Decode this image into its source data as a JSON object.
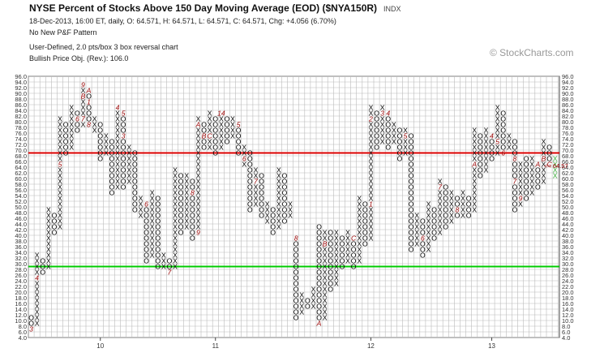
{
  "header": {
    "title": "NYSE Percent of Stocks Above 150 Day Moving Average (EOD) ($NYA150R)",
    "exchange": "INDX",
    "quote": "18-Dec-2013, 16:00 ET, daily, O: 64.571, H: 64.571, L: 64.571, C: 64.571, Chg: +4.056 (6.70%)",
    "pattern": "No New P&F Pattern",
    "scaling": "User-Defined, 2.0 pts/box 3 box reversal chart",
    "objective": "Bullish Price Obj. (Rev.): 106.0"
  },
  "watermark": "© StockCharts.com",
  "chart_data": {
    "type": "point-and-figure",
    "box_size": 2,
    "reversal": 3,
    "ylim": [
      4,
      96
    ],
    "y_ticks": [
      "96.0",
      "94.0",
      "92.0",
      "90.0",
      "88.0",
      "86.0",
      "84.0",
      "82.0",
      "80.0",
      "78.0",
      "76.0",
      "74.0",
      "72.0",
      "70.0",
      "68.0",
      "66.0",
      "64.0",
      "62.0",
      "60.0",
      "58.0",
      "56.0",
      "54.0",
      "52.0",
      "50.0",
      "48.0",
      "46.0",
      "44.0",
      "42.0",
      "40.0",
      "38.0",
      "36.0",
      "34.0",
      "32.0",
      "30.0",
      "28.0",
      "26.0",
      "24.0",
      "22.0",
      "20.0",
      "18.0",
      "16.0",
      "14.0",
      "12.0",
      "10.0",
      "8.0",
      "6.0",
      "4.0"
    ],
    "x_ticks": [
      {
        "label": "10",
        "col": 12
      },
      {
        "label": "11",
        "col": 32
      },
      {
        "label": "12",
        "col": 59
      },
      {
        "label": "13",
        "col": 80
      }
    ],
    "resistance_line": 69,
    "support_line": 29,
    "last_value_label": "64.57",
    "columns": [
      {
        "t": "O",
        "high": 10,
        "low": 6
      },
      {
        "t": "X",
        "high": 32,
        "low": 8
      },
      {
        "t": "O",
        "high": 30,
        "low": 26
      },
      {
        "t": "X",
        "high": 48,
        "low": 28
      },
      {
        "t": "O",
        "high": 46,
        "low": 40
      },
      {
        "t": "X",
        "high": 80,
        "low": 42
      },
      {
        "t": "O",
        "high": 78,
        "low": 68
      },
      {
        "t": "X",
        "high": 84,
        "low": 70
      },
      {
        "t": "O",
        "high": 82,
        "low": 76
      },
      {
        "t": "X",
        "high": 92,
        "low": 78
      },
      {
        "t": "O",
        "high": 90,
        "low": 78
      },
      {
        "t": "X",
        "high": 80,
        "low": 76
      },
      {
        "t": "O",
        "high": 78,
        "low": 66
      },
      {
        "t": "X",
        "high": 74,
        "low": 68
      },
      {
        "t": "O",
        "high": 72,
        "low": 54
      },
      {
        "t": "X",
        "high": 84,
        "low": 56
      },
      {
        "t": "O",
        "high": 82,
        "low": 56
      },
      {
        "t": "X",
        "high": 70,
        "low": 58
      },
      {
        "t": "O",
        "high": 68,
        "low": 48
      },
      {
        "t": "X",
        "high": 52,
        "low": 46
      },
      {
        "t": "O",
        "high": 50,
        "low": 30
      },
      {
        "t": "X",
        "high": 54,
        "low": 32
      },
      {
        "t": "O",
        "high": 52,
        "low": 28
      },
      {
        "t": "X",
        "high": 32,
        "low": 28
      },
      {
        "t": "O",
        "high": 30,
        "low": 26
      },
      {
        "t": "X",
        "high": 62,
        "low": 28
      },
      {
        "t": "O",
        "high": 60,
        "low": 40
      },
      {
        "t": "X",
        "high": 60,
        "low": 42
      },
      {
        "t": "O",
        "high": 58,
        "low": 38
      },
      {
        "t": "X",
        "high": 80,
        "low": 40
      },
      {
        "t": "O",
        "high": 78,
        "low": 70
      },
      {
        "t": "X",
        "high": 82,
        "low": 70
      },
      {
        "t": "O",
        "high": 80,
        "low": 68
      },
      {
        "t": "X",
        "high": 82,
        "low": 70
      },
      {
        "t": "O",
        "high": 80,
        "low": 72
      },
      {
        "t": "X",
        "high": 80,
        "low": 74
      },
      {
        "t": "O",
        "high": 78,
        "low": 68
      },
      {
        "t": "X",
        "high": 70,
        "low": 64
      },
      {
        "t": "O",
        "high": 68,
        "low": 48
      },
      {
        "t": "X",
        "high": 62,
        "low": 50
      },
      {
        "t": "O",
        "high": 60,
        "low": 46
      },
      {
        "t": "X",
        "high": 50,
        "low": 44
      },
      {
        "t": "O",
        "high": 48,
        "low": 40
      },
      {
        "t": "X",
        "high": 62,
        "low": 42
      },
      {
        "t": "O",
        "high": 60,
        "low": 44
      },
      {
        "t": "X",
        "high": 50,
        "low": 46
      },
      {
        "t": "O",
        "high": 38,
        "low": 10
      },
      {
        "t": "X",
        "high": 18,
        "low": 12
      },
      {
        "t": "O",
        "high": 16,
        "low": 14
      },
      {
        "t": "X",
        "high": 20,
        "low": 14
      },
      {
        "t": "O",
        "high": 42,
        "low": 8
      },
      {
        "t": "X",
        "high": 40,
        "low": 10
      },
      {
        "t": "O",
        "high": 40,
        "low": 20
      },
      {
        "t": "X",
        "high": 40,
        "low": 22
      },
      {
        "t": "O",
        "high": 38,
        "low": 28
      },
      {
        "t": "X",
        "high": 40,
        "low": 30
      },
      {
        "t": "O",
        "high": 38,
        "low": 28
      },
      {
        "t": "X",
        "high": 52,
        "low": 30
      },
      {
        "t": "O",
        "high": 50,
        "low": 36
      },
      {
        "t": "X",
        "high": 84,
        "low": 38
      },
      {
        "t": "O",
        "high": 82,
        "low": 70
      },
      {
        "t": "X",
        "high": 84,
        "low": 72
      },
      {
        "t": "O",
        "high": 82,
        "low": 70
      },
      {
        "t": "X",
        "high": 78,
        "low": 72
      },
      {
        "t": "O",
        "high": 76,
        "low": 66
      },
      {
        "t": "X",
        "high": 76,
        "low": 68
      },
      {
        "t": "O",
        "high": 74,
        "low": 34
      },
      {
        "t": "X",
        "high": 46,
        "low": 36
      },
      {
        "t": "O",
        "high": 44,
        "low": 32
      },
      {
        "t": "X",
        "high": 50,
        "low": 34
      },
      {
        "t": "O",
        "high": 48,
        "low": 38
      },
      {
        "t": "X",
        "high": 58,
        "low": 40
      },
      {
        "t": "O",
        "high": 56,
        "low": 42
      },
      {
        "t": "X",
        "high": 54,
        "low": 44
      },
      {
        "t": "O",
        "high": 52,
        "low": 46
      },
      {
        "t": "X",
        "high": 54,
        "low": 46
      },
      {
        "t": "O",
        "high": 52,
        "low": 46
      },
      {
        "t": "X",
        "high": 76,
        "low": 48
      },
      {
        "t": "O",
        "high": 74,
        "low": 60
      },
      {
        "t": "X",
        "high": 76,
        "low": 62
      },
      {
        "t": "O",
        "high": 74,
        "low": 66
      },
      {
        "t": "X",
        "high": 84,
        "low": 68
      },
      {
        "t": "O",
        "high": 82,
        "low": 68
      },
      {
        "t": "X",
        "high": 74,
        "low": 70
      },
      {
        "t": "O",
        "high": 72,
        "low": 48
      },
      {
        "t": "X",
        "high": 64,
        "low": 50
      },
      {
        "t": "O",
        "high": 66,
        "low": 52
      },
      {
        "t": "X",
        "high": 66,
        "low": 54
      },
      {
        "t": "O",
        "high": 64,
        "low": 56
      },
      {
        "t": "X",
        "high": 72,
        "low": 58
      },
      {
        "t": "O",
        "high": 70,
        "low": 64
      },
      {
        "t": "X",
        "high": 66,
        "low": 60
      }
    ],
    "month_markers": [
      {
        "col": 0,
        "value": 6,
        "label": "3"
      },
      {
        "col": 1,
        "value": 24,
        "label": "4"
      },
      {
        "col": 5,
        "value": 64,
        "label": "5"
      },
      {
        "col": 8,
        "value": 80,
        "label": "6"
      },
      {
        "col": 9,
        "value": 80,
        "label": "7"
      },
      {
        "col": 10,
        "value": 78,
        "label": "8"
      },
      {
        "col": 9,
        "value": 92,
        "label": "9"
      },
      {
        "col": 10,
        "value": 90,
        "label": "A"
      },
      {
        "col": 9,
        "value": 88,
        "label": "B"
      },
      {
        "col": 10,
        "value": 86,
        "label": "1"
      },
      {
        "col": 15,
        "value": 84,
        "label": "4"
      },
      {
        "col": 16,
        "value": 82,
        "label": "5"
      },
      {
        "col": 16,
        "value": 74,
        "label": "3"
      },
      {
        "col": 20,
        "value": 50,
        "label": "6"
      },
      {
        "col": 24,
        "value": 26,
        "label": "7"
      },
      {
        "col": 28,
        "value": 54,
        "label": "8"
      },
      {
        "col": 29,
        "value": 40,
        "label": "9"
      },
      {
        "col": 29,
        "value": 78,
        "label": "A"
      },
      {
        "col": 31,
        "value": 84,
        "label": "1"
      },
      {
        "col": 30,
        "value": 74,
        "label": "B"
      },
      {
        "col": 31,
        "value": 74,
        "label": "C"
      },
      {
        "col": 33,
        "value": 82,
        "label": "14"
      },
      {
        "col": 36,
        "value": 78,
        "label": "5"
      },
      {
        "col": 37,
        "value": 66,
        "label": "6"
      },
      {
        "col": 39,
        "value": 58,
        "label": "7"
      },
      {
        "col": 46,
        "value": 38,
        "label": "8"
      },
      {
        "col": 48,
        "value": 18,
        "label": "9"
      },
      {
        "col": 50,
        "value": 8,
        "label": "A"
      },
      {
        "col": 51,
        "value": 36,
        "label": "B"
      },
      {
        "col": 56,
        "value": 38,
        "label": "C"
      },
      {
        "col": 59,
        "value": 50,
        "label": "1"
      },
      {
        "col": 59,
        "value": 80,
        "label": "2"
      },
      {
        "col": 61,
        "value": 82,
        "label": "3"
      },
      {
        "col": 62,
        "value": 82,
        "label": "4"
      },
      {
        "col": 65,
        "value": 74,
        "label": "5"
      },
      {
        "col": 68,
        "value": 38,
        "label": "6"
      },
      {
        "col": 71,
        "value": 56,
        "label": "7"
      },
      {
        "col": 74,
        "value": 48,
        "label": "8"
      },
      {
        "col": 75,
        "value": 64,
        "label": "9"
      },
      {
        "col": 77,
        "value": 64,
        "label": "A"
      },
      {
        "col": 80,
        "value": 82,
        "label": "2"
      },
      {
        "col": 80,
        "value": 78,
        "label": "3"
      },
      {
        "col": 80,
        "value": 74,
        "label": "4"
      },
      {
        "col": 81,
        "value": 72,
        "label": "5"
      },
      {
        "col": 82,
        "value": 68,
        "label": "6"
      },
      {
        "col": 84,
        "value": 58,
        "label": "7"
      },
      {
        "col": 84,
        "value": 66,
        "label": "8"
      },
      {
        "col": 85,
        "value": 52,
        "label": "9"
      },
      {
        "col": 88,
        "value": 64,
        "label": "A"
      },
      {
        "col": 89,
        "value": 66,
        "label": "B"
      },
      {
        "col": 90,
        "value": 64,
        "label": "C"
      }
    ],
    "colors": {
      "x_mark": "#000000",
      "o_mark": "#000000",
      "month_marker": "#990000",
      "last_column": "#33aa33",
      "resistance": "#dd0000",
      "support": "#00cc00",
      "grid": "#bbbbbb"
    }
  }
}
